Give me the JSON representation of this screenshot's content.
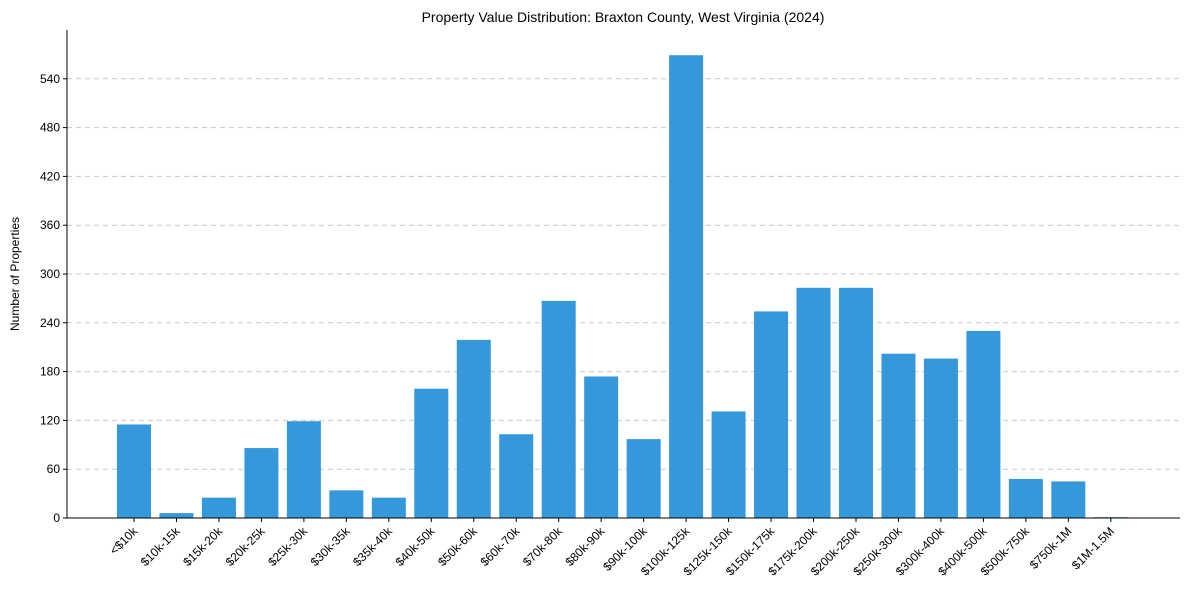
{
  "chart_data": {
    "type": "bar",
    "title": "Property Value Distribution: Braxton County, West Virginia (2024)",
    "xlabel": "",
    "ylabel": "Number of Properties",
    "ylim": [
      0,
      600
    ],
    "yticks": [
      0,
      60,
      120,
      180,
      240,
      300,
      360,
      420,
      480,
      540
    ],
    "grid": "y-dashed",
    "color": "#3498db",
    "categories": [
      "<$10k",
      "$10k-15k",
      "$15k-20k",
      "$20k-25k",
      "$25k-30k",
      "$30k-35k",
      "$35k-40k",
      "$40k-50k",
      "$50k-60k",
      "$60k-70k",
      "$70k-80k",
      "$80k-90k",
      "$90k-100k",
      "$100k-125k",
      "$125k-150k",
      "$150k-175k",
      "$175k-200k",
      "$200k-250k",
      "$250k-300k",
      "$300k-400k",
      "$400k-500k",
      "$500k-750k",
      "$750k-1M",
      "$1M-1.5M"
    ],
    "values": [
      115,
      6,
      25,
      86,
      119,
      34,
      25,
      159,
      219,
      103,
      267,
      174,
      97,
      569,
      131,
      254,
      283,
      283,
      202,
      196,
      230,
      48,
      45,
      1
    ]
  }
}
